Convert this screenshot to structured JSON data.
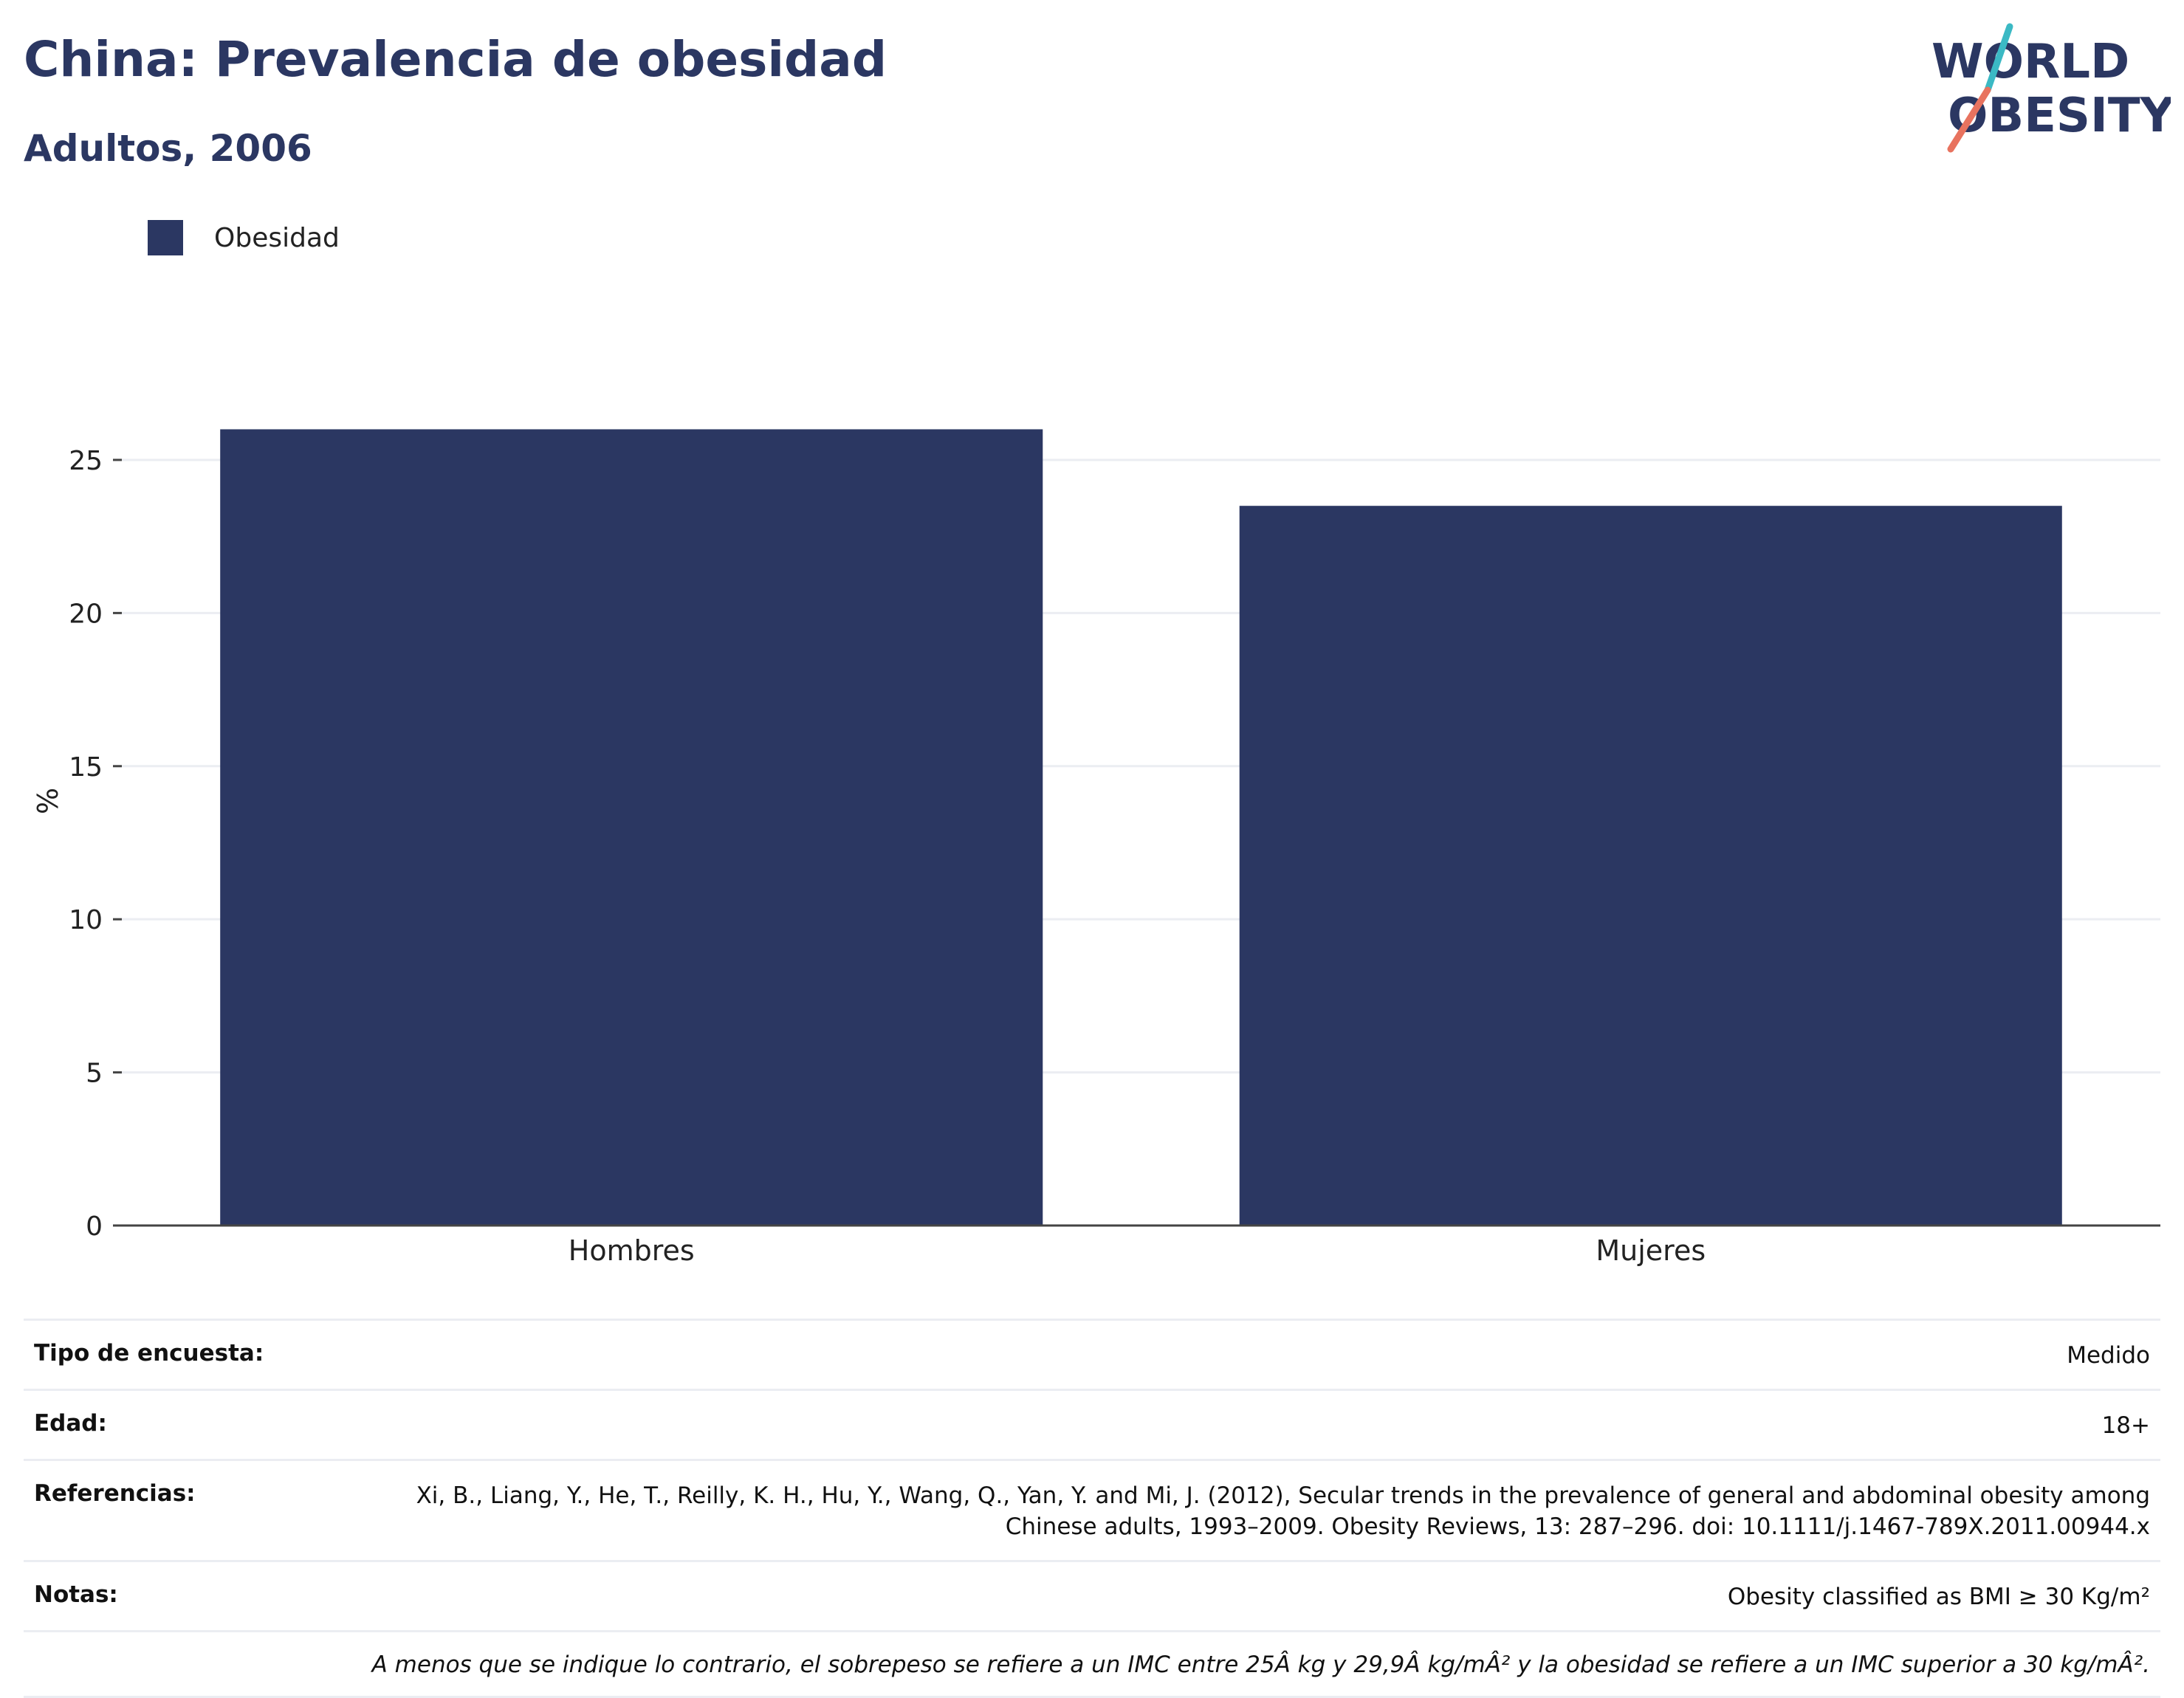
{
  "header": {
    "title": "China: Prevalencia de obesidad",
    "subtitle": "Adultos, 2006"
  },
  "logo": {
    "line1": "WORLD",
    "line2": "OBESITY",
    "accent_teal": "#3bb9c4",
    "accent_coral": "#e8735f"
  },
  "legend": {
    "label": "Obesidad",
    "color": "#2b3762"
  },
  "chart_data": {
    "type": "bar",
    "categories": [
      "Hombres",
      "Mujeres"
    ],
    "series": [
      {
        "name": "Obesidad",
        "values": [
          26.0,
          23.5
        ],
        "color": "#2b3762"
      }
    ],
    "title": "China: Prevalencia de obesidad",
    "subtitle": "Adultos, 2006",
    "xlabel": "",
    "ylabel": "%",
    "ylim": [
      0,
      27
    ],
    "yticks": [
      0,
      5,
      10,
      15,
      20,
      25
    ],
    "grid": true,
    "legend_position": "top-left"
  },
  "info": {
    "survey_type_label": "Tipo de encuesta:",
    "survey_type_value": "Medido",
    "age_label": "Edad:",
    "age_value": "18+",
    "references_label": "Referencias:",
    "references_value": "Xi, B., Liang, Y., He, T., Reilly, K. H., Hu, Y., Wang, Q., Yan, Y. and Mi, J. (2012), Secular trends in the prevalence of general and abdominal obesity among Chinese adults, 1993–2009. Obesity Reviews, 13: 287–296. doi: 10.1111/j.1467-789X.2011.00944.x",
    "notes_label": "Notas:",
    "notes_value": "Obesity classified as BMI ≥ 30 Kg/m²",
    "footnote": "A menos que se indique lo contrario, el sobrepeso se refiere a un IMC entre 25Â kg y 29,9Â kg/mÂ² y la obesidad se refiere a un IMC superior a 30 kg/mÂ²."
  }
}
